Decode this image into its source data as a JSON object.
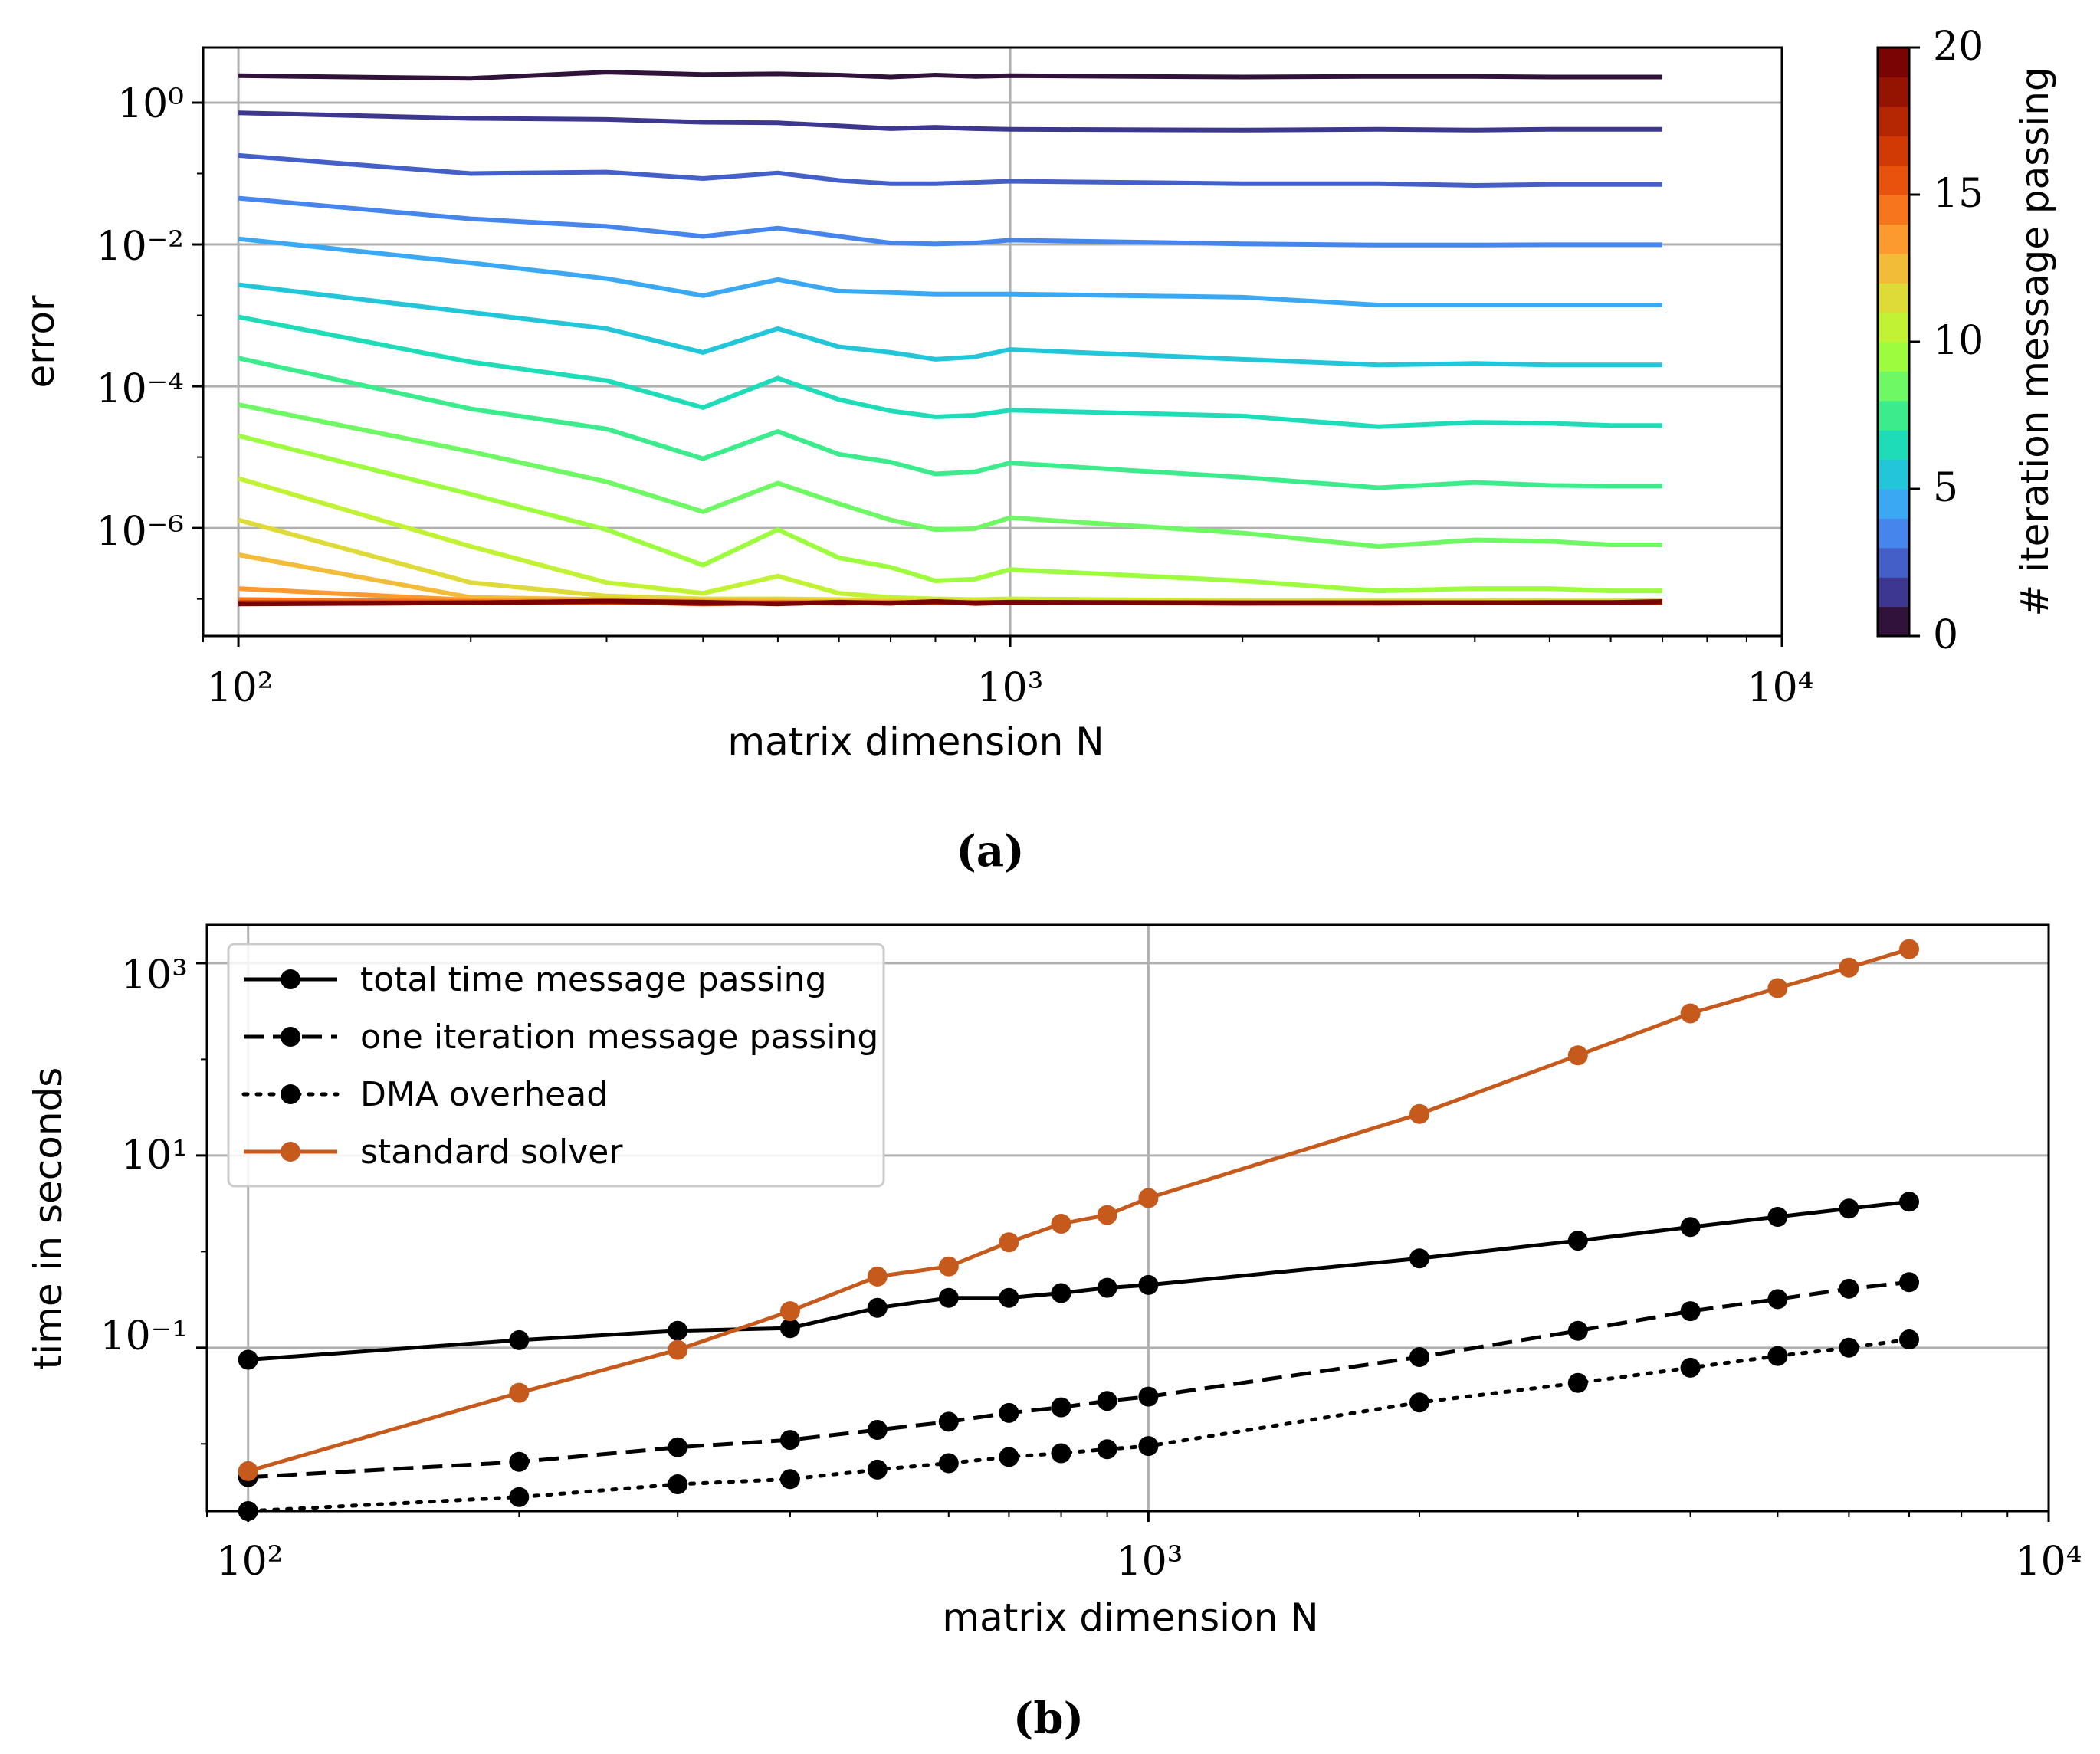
{
  "chart_data": [
    {
      "id": "a",
      "type": "line",
      "panel_label": "(a)",
      "xlabel": "matrix dimension N",
      "ylabel": "error",
      "xscale": "log",
      "yscale": "log",
      "xlim": [
        90,
        10000
      ],
      "ylim": [
        3e-08,
        6
      ],
      "grid": true,
      "x_ticks": [
        {
          "value": 100,
          "label": "10²"
        },
        {
          "value": 1000,
          "label": "10³"
        },
        {
          "value": 10000,
          "label": "10⁴"
        }
      ],
      "y_ticks": [
        {
          "value": 1,
          "label": "10⁰"
        },
        {
          "value": 0.01,
          "label": "10⁻²"
        },
        {
          "value": 0.0001,
          "label": "10⁻⁴"
        },
        {
          "value": 1e-06,
          "label": "10⁻⁶"
        }
      ],
      "colorbar": {
        "label": "# iteration message passing",
        "min": 0,
        "max": 20,
        "ticks": [
          {
            "value": 0,
            "label": "0"
          },
          {
            "value": 5,
            "label": "5"
          },
          {
            "value": 10,
            "label": "10"
          },
          {
            "value": 15,
            "label": "15"
          },
          {
            "value": 20,
            "label": "20"
          }
        ],
        "colors": [
          "#30123b",
          "#3e378f",
          "#4460c8",
          "#4686ec",
          "#3ba8f4",
          "#23c5d9",
          "#1fdcb9",
          "#3cec8c",
          "#6ef863",
          "#9dfc3e",
          "#c1f334",
          "#deda37",
          "#f2bb38",
          "#fd9a2f",
          "#f7751c",
          "#e8520d",
          "#d13a05",
          "#b52602",
          "#941301",
          "#7a0403"
        ]
      },
      "x": [
        100,
        200,
        300,
        400,
        500,
        600,
        700,
        800,
        900,
        1000,
        2000,
        3000,
        4000,
        5000,
        6000,
        7000
      ],
      "series": [
        {
          "name": "0",
          "values": [
            2.4,
            2.2,
            2.7,
            2.5,
            2.55,
            2.45,
            2.3,
            2.45,
            2.35,
            2.4,
            2.3,
            2.35,
            2.35,
            2.3,
            2.3,
            2.3
          ]
        },
        {
          "name": "1",
          "values": [
            0.72,
            0.6,
            0.58,
            0.53,
            0.52,
            0.47,
            0.43,
            0.45,
            0.43,
            0.42,
            0.41,
            0.42,
            0.41,
            0.42,
            0.42,
            0.42
          ]
        },
        {
          "name": "2",
          "values": [
            0.18,
            0.1,
            0.105,
            0.085,
            0.102,
            0.08,
            0.072,
            0.072,
            0.075,
            0.078,
            0.072,
            0.072,
            0.068,
            0.07,
            0.07,
            0.07
          ]
        },
        {
          "name": "3",
          "values": [
            0.045,
            0.023,
            0.018,
            0.013,
            0.017,
            0.013,
            0.0105,
            0.0102,
            0.0105,
            0.0115,
            0.0102,
            0.0098,
            0.0098,
            0.0099,
            0.0099,
            0.0099
          ]
        },
        {
          "name": "4",
          "values": [
            0.012,
            0.0055,
            0.0033,
            0.0019,
            0.0032,
            0.0022,
            0.0021,
            0.002,
            0.002,
            0.002,
            0.0018,
            0.0014,
            0.0014,
            0.0014,
            0.0014,
            0.0014
          ]
        },
        {
          "name": "5",
          "values": [
            0.0027,
            0.0011,
            0.00065,
            0.0003,
            0.00065,
            0.00036,
            0.0003,
            0.00024,
            0.00026,
            0.00033,
            0.00024,
            0.0002,
            0.00021,
            0.0002,
            0.0002,
            0.0002
          ]
        },
        {
          "name": "6",
          "values": [
            0.00095,
            0.00022,
            0.00012,
            5e-05,
            0.00013,
            6.5e-05,
            4.5e-05,
            3.7e-05,
            3.9e-05,
            4.6e-05,
            3.8e-05,
            2.7e-05,
            3.1e-05,
            3e-05,
            2.8e-05,
            2.8e-05
          ]
        },
        {
          "name": "7",
          "values": [
            0.00025,
            4.8e-05,
            2.5e-05,
            9.5e-06,
            2.3e-05,
            1.1e-05,
            8.5e-06,
            5.8e-06,
            6.2e-06,
            8.3e-06,
            5.2e-06,
            3.7e-06,
            4.4e-06,
            4e-06,
            3.9e-06,
            3.9e-06
          ]
        },
        {
          "name": "8",
          "values": [
            5.5e-05,
            1.2e-05,
            4.5e-06,
            1.7e-06,
            4.3e-06,
            2.2e-06,
            1.3e-06,
            9.5e-07,
            9.8e-07,
            1.4e-06,
            8.5e-07,
            5.5e-07,
            6.8e-07,
            6.5e-07,
            5.8e-07,
            5.8e-07
          ]
        },
        {
          "name": "9",
          "values": [
            2e-05,
            3e-06,
            9.5e-07,
            3e-07,
            9.5e-07,
            3.8e-07,
            2.8e-07,
            1.8e-07,
            1.9e-07,
            2.6e-07,
            1.8e-07,
            1.3e-07,
            1.4e-07,
            1.4e-07,
            1.3e-07,
            1.3e-07
          ]
        },
        {
          "name": "10",
          "values": [
            5e-06,
            5.5e-07,
            1.7e-07,
            1.2e-07,
            2.1e-07,
            1.2e-07,
            1.05e-07,
            1e-07,
            9.8e-08,
            1e-07,
            9.5e-08,
            9.5e-08,
            9.5e-08,
            9.5e-08,
            9.5e-08,
            9.5e-08
          ]
        },
        {
          "name": "11",
          "values": [
            1.3e-06,
            1.7e-07,
            1.1e-07,
            1e-07,
            1e-07,
            9.8e-08,
            9.5e-08,
            9.5e-08,
            9.3e-08,
            9.2e-08,
            9.2e-08,
            9.2e-08,
            9.2e-08,
            9.2e-08,
            9.2e-08,
            9.2e-08
          ]
        },
        {
          "name": "12",
          "values": [
            4.2e-07,
            1.05e-07,
            9.8e-08,
            9.5e-08,
            9.3e-08,
            9.2e-08,
            9.1e-08,
            9.1e-08,
            9e-08,
            9e-08,
            9e-08,
            9e-08,
            9e-08,
            9e-08,
            9e-08,
            9e-08
          ]
        },
        {
          "name": "13",
          "values": [
            1.4e-07,
            9.6e-08,
            9.3e-08,
            9.1e-08,
            9e-08,
            9e-08,
            8.9e-08,
            8.9e-08,
            8.9e-08,
            8.9e-08,
            8.9e-08,
            8.9e-08,
            8.9e-08,
            8.9e-08,
            8.9e-08,
            8.9e-08
          ]
        },
        {
          "name": "14",
          "values": [
            9.8e-08,
            9.2e-08,
            9e-08,
            8.9e-08,
            8.8e-08,
            8.8e-08,
            8.8e-08,
            8.8e-08,
            8.8e-08,
            8.8e-08,
            8.8e-08,
            8.8e-08,
            8.8e-08,
            8.8e-08,
            8.8e-08,
            8.8e-08
          ]
        },
        {
          "name": "15",
          "values": [
            9e-08,
            8.9e-08,
            8.9e-08,
            8.8e-08,
            8.8e-08,
            8.8e-08,
            8.8e-08,
            8.8e-08,
            8.8e-08,
            8.8e-08,
            8.8e-08,
            8.8e-08,
            8.8e-08,
            8.8e-08,
            8.8e-08,
            8.8e-08
          ]
        },
        {
          "name": "16",
          "values": [
            8.8e-08,
            8.8e-08,
            9.1e-08,
            8.5e-08,
            8.8e-08,
            8.7e-08,
            8.8e-08,
            9e-08,
            8.7e-08,
            8.8e-08,
            8.7e-08,
            8.7e-08,
            8.8e-08,
            8.8e-08,
            8.8e-08,
            8.9e-08
          ]
        },
        {
          "name": "17",
          "values": [
            8.7e-08,
            8.8e-08,
            9.2e-08,
            8.6e-08,
            8.7e-08,
            8.8e-08,
            8.7e-08,
            9.1e-08,
            8.6e-08,
            8.9e-08,
            8.7e-08,
            8.7e-08,
            8.8e-08,
            8.8e-08,
            8.8e-08,
            9e-08
          ]
        },
        {
          "name": "18",
          "values": [
            8.6e-08,
            8.8e-08,
            9.3e-08,
            8.8e-08,
            8.6e-08,
            8.9e-08,
            8.7e-08,
            9.2e-08,
            8.7e-08,
            8.9e-08,
            8.7e-08,
            8.8e-08,
            8.8e-08,
            8.8e-08,
            8.8e-08,
            9.1e-08
          ]
        },
        {
          "name": "19",
          "values": [
            8.5e-08,
            8.8e-08,
            9.3e-08,
            9e-08,
            8.5e-08,
            9e-08,
            8.7e-08,
            9.2e-08,
            8.8e-08,
            9e-08,
            8.8e-08,
            8.8e-08,
            8.8e-08,
            8.9e-08,
            8.9e-08,
            9.2e-08
          ]
        }
      ]
    },
    {
      "id": "b",
      "type": "line",
      "panel_label": "(b)",
      "xlabel": "matrix dimension N",
      "ylabel": "time in seconds",
      "xscale": "log",
      "yscale": "log",
      "xlim": [
        90,
        10000
      ],
      "ylim": [
        0.002,
        2500
      ],
      "grid": true,
      "legend_position": "top-left",
      "x_ticks": [
        {
          "value": 100,
          "label": "10²"
        },
        {
          "value": 1000,
          "label": "10³"
        },
        {
          "value": 10000,
          "label": "10⁴"
        }
      ],
      "y_ticks": [
        {
          "value": 1000,
          "label": "10³"
        },
        {
          "value": 10,
          "label": "10¹"
        },
        {
          "value": 0.1,
          "label": "10⁻¹"
        }
      ],
      "x": [
        100,
        200,
        300,
        400,
        500,
        600,
        700,
        800,
        900,
        1000,
        2000,
        3000,
        4000,
        5000,
        6000,
        7000
      ],
      "series": [
        {
          "name": "total time message passing",
          "color": "#000000",
          "dash": "solid",
          "values": [
            0.075,
            0.12,
            0.15,
            0.16,
            0.26,
            0.33,
            0.33,
            0.37,
            0.42,
            0.45,
            0.85,
            1.3,
            1.8,
            2.3,
            2.8,
            3.3
          ]
        },
        {
          "name": "one iteration message passing",
          "color": "#000000",
          "dash": "dashed",
          "values": [
            0.0045,
            0.0065,
            0.0092,
            0.011,
            0.014,
            0.017,
            0.021,
            0.024,
            0.028,
            0.031,
            0.08,
            0.15,
            0.24,
            0.32,
            0.41,
            0.48
          ]
        },
        {
          "name": "DMA overhead",
          "color": "#000000",
          "dash": "dotted",
          "values": [
            0.002,
            0.0028,
            0.0038,
            0.0043,
            0.0054,
            0.0063,
            0.0073,
            0.008,
            0.0088,
            0.0095,
            0.027,
            0.043,
            0.062,
            0.082,
            0.1,
            0.122
          ]
        },
        {
          "name": "standard solver",
          "color": "#c55a1c",
          "dash": "solid",
          "values": [
            0.0052,
            0.034,
            0.095,
            0.24,
            0.55,
            0.7,
            1.25,
            1.95,
            2.4,
            3.6,
            27,
            110,
            300,
            550,
            900,
            1400
          ]
        }
      ]
    }
  ]
}
